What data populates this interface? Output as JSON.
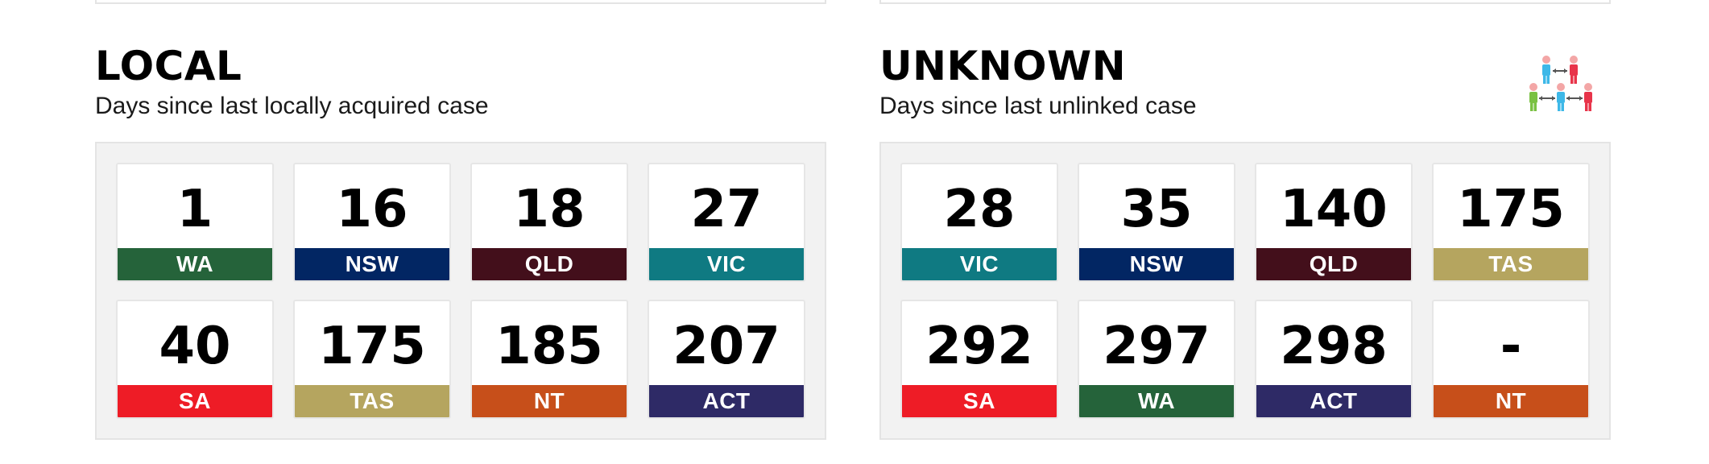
{
  "sections": {
    "local": {
      "title": "LOCAL",
      "subtitle": "Days since last locally acquired case",
      "cards": [
        {
          "value": "1",
          "state": "WA",
          "color": "#25633a"
        },
        {
          "value": "16",
          "state": "NSW",
          "color": "#022663"
        },
        {
          "value": "18",
          "state": "QLD",
          "color": "#430f1b"
        },
        {
          "value": "27",
          "state": "VIC",
          "color": "#0f7a82"
        },
        {
          "value": "40",
          "state": "SA",
          "color": "#ee1c26"
        },
        {
          "value": "175",
          "state": "TAS",
          "color": "#b5a55f"
        },
        {
          "value": "185",
          "state": "NT",
          "color": "#c74f1a"
        },
        {
          "value": "207",
          "state": "ACT",
          "color": "#2e2a66"
        }
      ]
    },
    "unknown": {
      "title": "UNKNOWN",
      "subtitle": "Days since last unlinked case",
      "icon": "contact-tracing-people-icon",
      "cards": [
        {
          "value": "28",
          "state": "VIC",
          "color": "#0f7a82"
        },
        {
          "value": "35",
          "state": "NSW",
          "color": "#022663"
        },
        {
          "value": "140",
          "state": "QLD",
          "color": "#430f1b"
        },
        {
          "value": "175",
          "state": "TAS",
          "color": "#b5a55f"
        },
        {
          "value": "292",
          "state": "SA",
          "color": "#ee1c26"
        },
        {
          "value": "297",
          "state": "WA",
          "color": "#25633a"
        },
        {
          "value": "298",
          "state": "ACT",
          "color": "#2e2a66"
        },
        {
          "value": "-",
          "state": "NT",
          "color": "#c74f1a"
        }
      ]
    }
  }
}
